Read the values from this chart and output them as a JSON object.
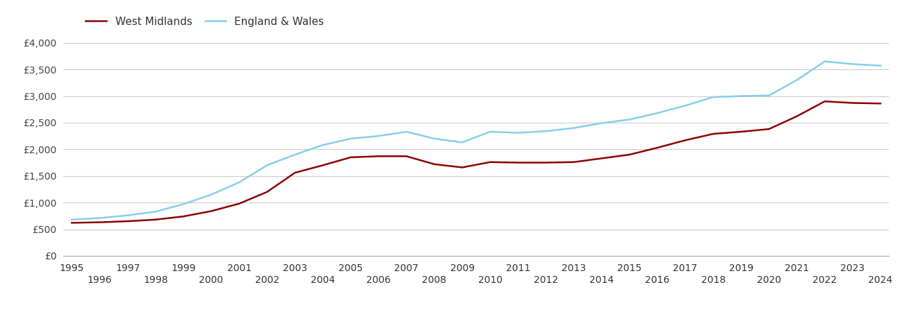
{
  "years": [
    1995,
    1996,
    1997,
    1998,
    1999,
    2000,
    2001,
    2002,
    2003,
    2004,
    2005,
    2006,
    2007,
    2008,
    2009,
    2010,
    2011,
    2012,
    2013,
    2014,
    2015,
    2016,
    2017,
    2018,
    2019,
    2020,
    2021,
    2022,
    2023,
    2024
  ],
  "west_midlands": [
    620,
    630,
    650,
    680,
    740,
    840,
    980,
    1200,
    1560,
    1700,
    1850,
    1870,
    1870,
    1720,
    1660,
    1760,
    1750,
    1750,
    1760,
    1830,
    1900,
    2030,
    2170,
    2290,
    2330,
    2380,
    2620,
    2900,
    2870,
    2860
  ],
  "england_wales": [
    680,
    710,
    760,
    830,
    970,
    1150,
    1380,
    1700,
    1900,
    2080,
    2200,
    2250,
    2330,
    2200,
    2130,
    2330,
    2310,
    2340,
    2400,
    2490,
    2560,
    2680,
    2820,
    2980,
    3000,
    3010,
    3300,
    3650,
    3600,
    3570
  ],
  "west_midlands_color": "#8B0000",
  "england_wales_color": "#87CEEB",
  "west_midlands_label": "West Midlands",
  "england_wales_label": "England & Wales",
  "ylim": [
    0,
    4100
  ],
  "yticks": [
    0,
    500,
    1000,
    1500,
    2000,
    2500,
    3000,
    3500,
    4000
  ],
  "ytick_labels": [
    "£0",
    "£500",
    "£1,000",
    "£1,500",
    "£2,000",
    "£2,500",
    "£3,000",
    "£3,500",
    "£4,000"
  ],
  "line_width": 1.8,
  "background_color": "#ffffff",
  "grid_color": "#cccccc",
  "tick_fontsize": 10,
  "legend_fontsize": 11
}
